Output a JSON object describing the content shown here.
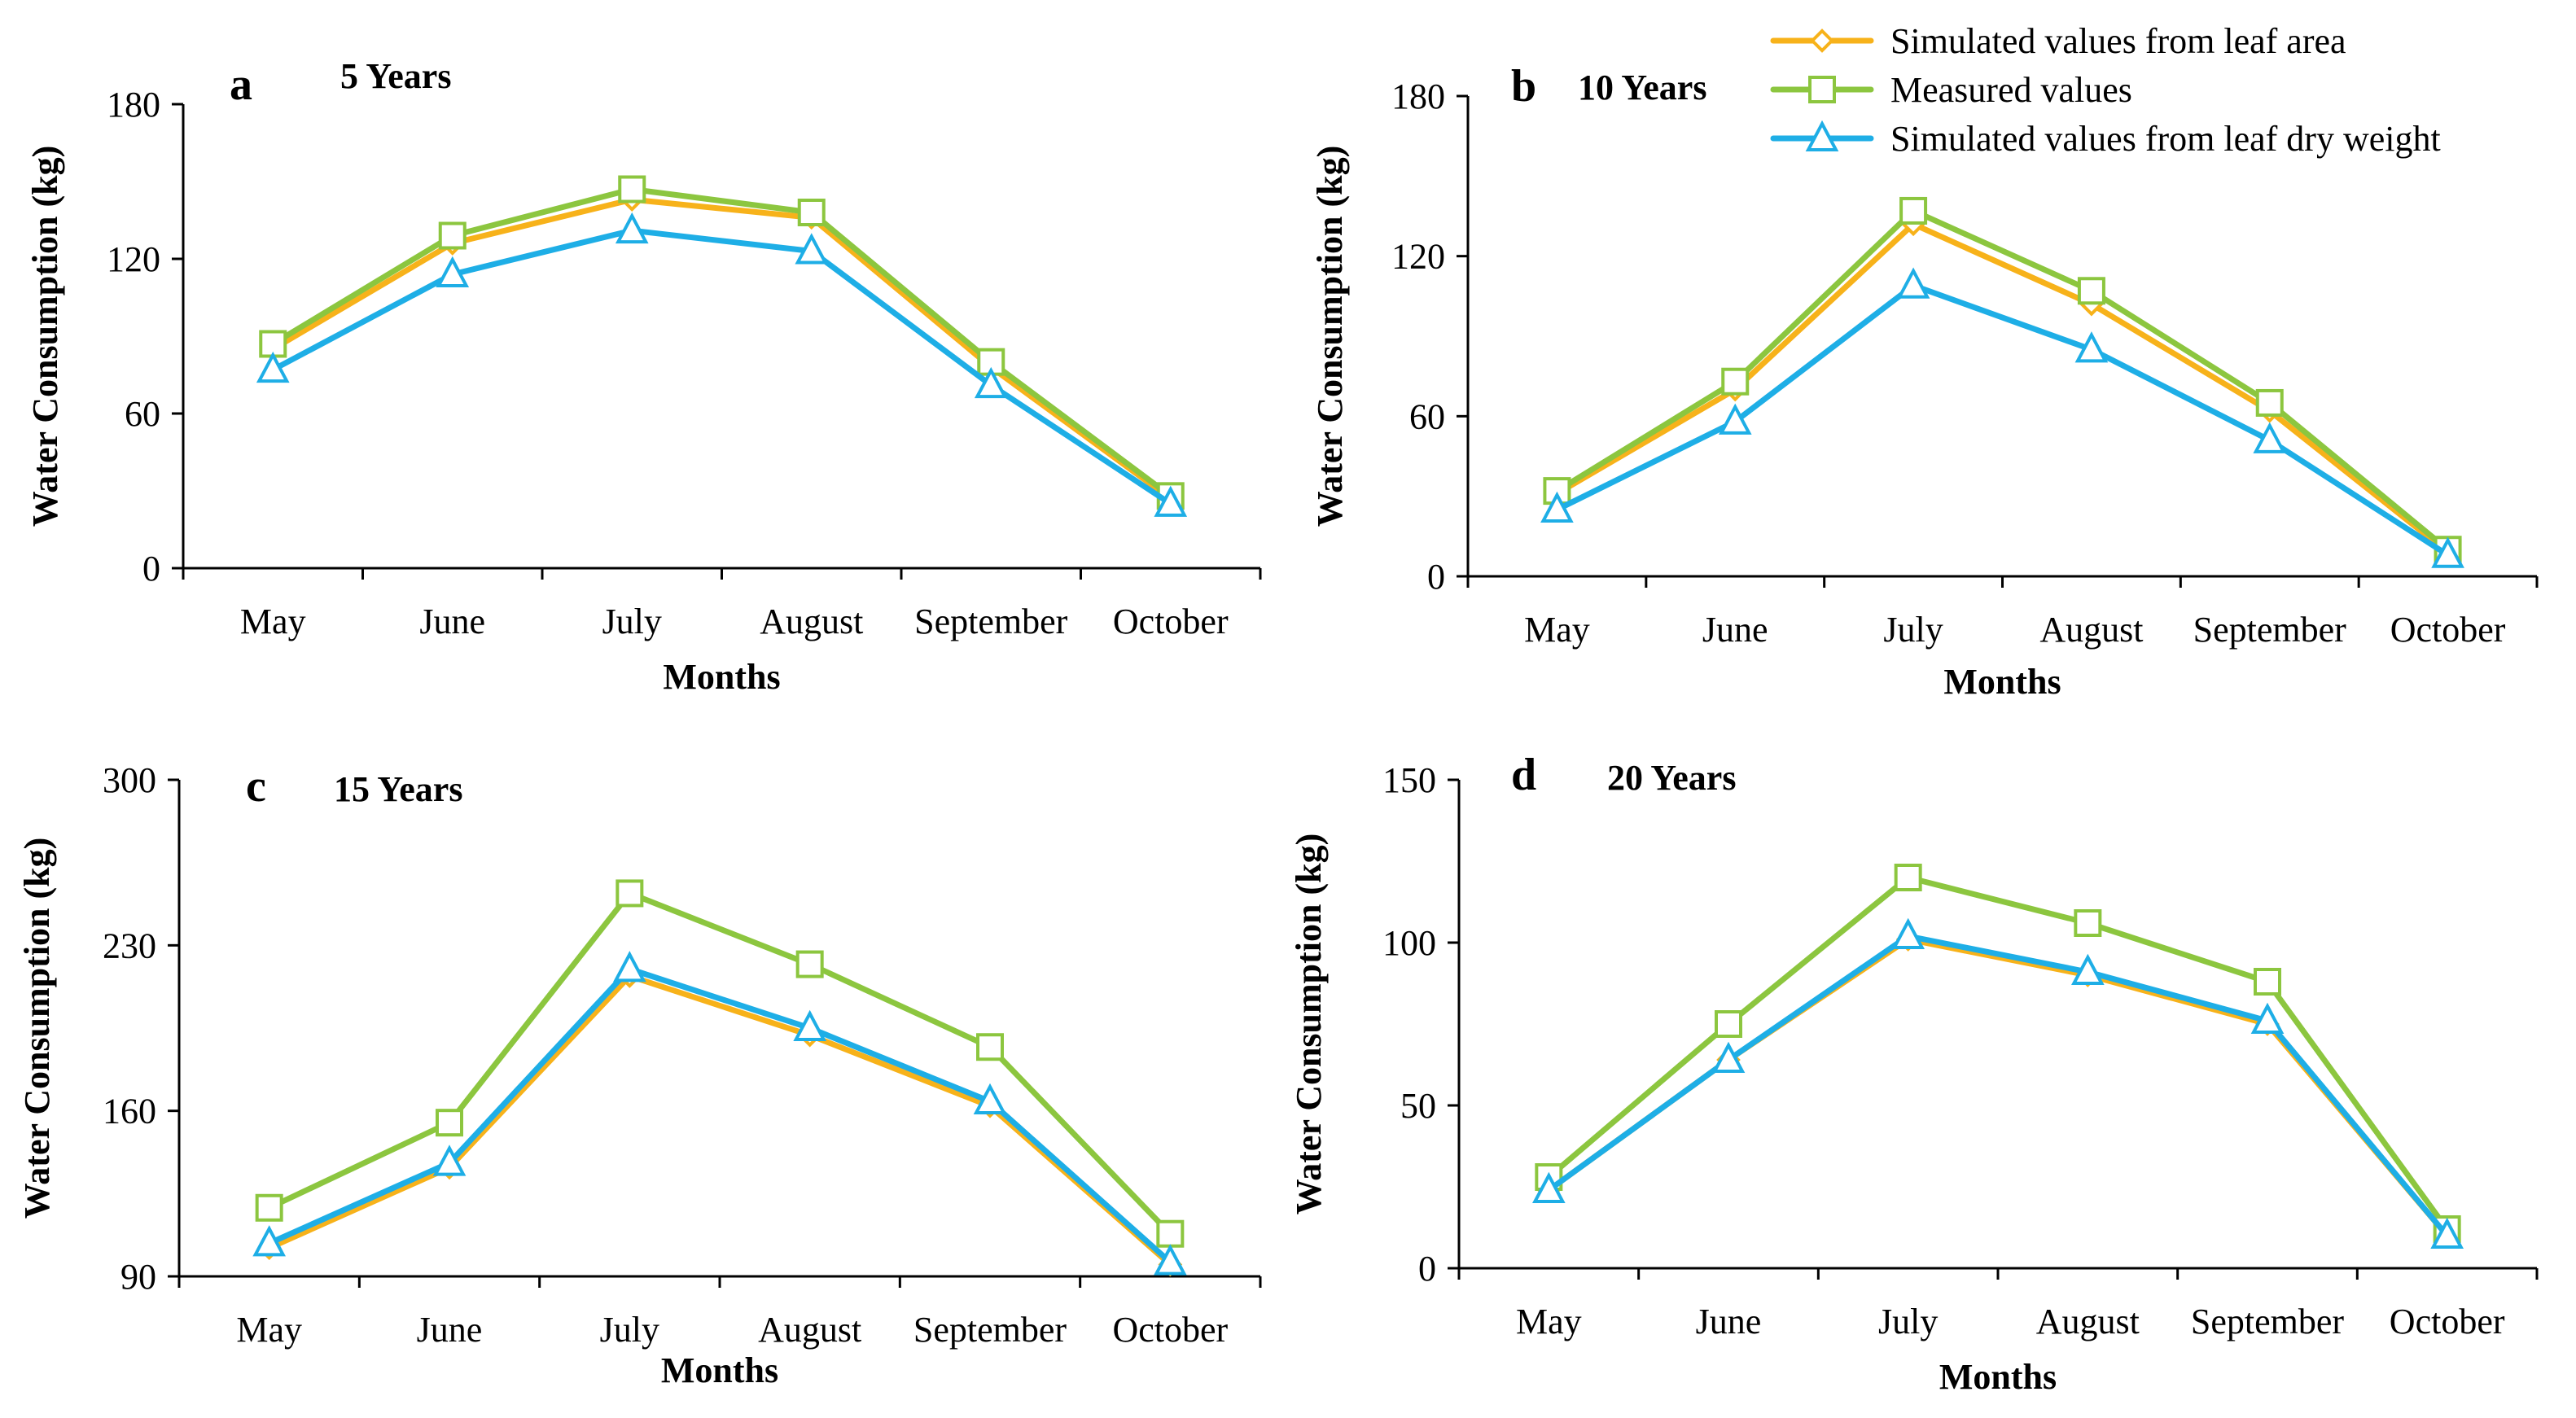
{
  "colors": {
    "leaf_area": "#f7b21a",
    "measured": "#8cc63f",
    "dry_weight": "#1eaee6"
  },
  "legend": [
    {
      "key": "leaf_area",
      "label": "Simulated values from leaf area",
      "marker": "diamond"
    },
    {
      "key": "measured",
      "label": "Measured values",
      "marker": "square"
    },
    {
      "key": "dry_weight",
      "label": "Simulated values from leaf dry weight",
      "marker": "triangle"
    }
  ],
  "chart_data": [
    {
      "type": "line",
      "panel": "a",
      "title": "5 Years",
      "xlabel": "Months",
      "ylabel": "Water Consumption (kg)",
      "categories": [
        "May",
        "June",
        "July",
        "August",
        "September",
        "October"
      ],
      "ylim": [
        0,
        180
      ],
      "yticks": [
        "0",
        "60",
        "120",
        "180"
      ],
      "series": [
        {
          "key": "leaf_area",
          "name": "Simulated values from leaf area",
          "values": [
            85,
            126,
            143,
            136,
            78,
            27
          ]
        },
        {
          "key": "measured",
          "name": "Measured values",
          "values": [
            87,
            129,
            147,
            138,
            80,
            28
          ]
        },
        {
          "key": "dry_weight",
          "name": "Simulated values from leaf dry weight",
          "values": [
            77,
            114,
            131,
            123,
            71,
            25
          ]
        }
      ]
    },
    {
      "type": "line",
      "panel": "b",
      "title": "10 Years",
      "xlabel": "Months",
      "ylabel": "Water Consumption (kg)",
      "categories": [
        "May",
        "June",
        "July",
        "August",
        "September",
        "October"
      ],
      "ylim": [
        0,
        180
      ],
      "yticks": [
        "0",
        "60",
        "120",
        "180"
      ],
      "series": [
        {
          "key": "leaf_area",
          "name": "Simulated values from leaf area",
          "values": [
            31,
            70,
            132,
            102,
            62,
            9
          ]
        },
        {
          "key": "measured",
          "name": "Measured values",
          "values": [
            32,
            73,
            137,
            107,
            65,
            10
          ]
        },
        {
          "key": "dry_weight",
          "name": "Simulated values from leaf dry weight",
          "values": [
            25,
            58,
            109,
            85,
            51,
            8
          ]
        }
      ]
    },
    {
      "type": "line",
      "panel": "c",
      "title": "15 Years",
      "xlabel": "Months",
      "ylabel": "Water Consumption (kg)",
      "categories": [
        "May",
        "June",
        "July",
        "August",
        "September",
        "October"
      ],
      "ylim": [
        90,
        300
      ],
      "yticks": [
        "90",
        "160",
        "230",
        "300"
      ],
      "series": [
        {
          "key": "leaf_area",
          "name": "Simulated values from leaf area",
          "values": [
            102,
            136,
            217,
            192,
            162,
            95
          ]
        },
        {
          "key": "measured",
          "name": "Measured values",
          "values": [
            119,
            155,
            252,
            222,
            187,
            108
          ]
        },
        {
          "key": "dry_weight",
          "name": "Simulated values from leaf dry weight",
          "values": [
            104,
            138,
            220,
            195,
            164,
            96
          ]
        }
      ]
    },
    {
      "type": "line",
      "panel": "d",
      "title": "20 Years",
      "xlabel": "Months",
      "ylabel": "Water Consumption (kg)",
      "categories": [
        "May",
        "June",
        "July",
        "August",
        "September",
        "October"
      ],
      "ylim": [
        0,
        150
      ],
      "yticks": [
        "0",
        "50",
        "100",
        "150"
      ],
      "series": [
        {
          "key": "leaf_area",
          "name": "Simulated values from leaf area",
          "values": [
            24,
            64,
            101,
            90,
            75,
            10
          ]
        },
        {
          "key": "measured",
          "name": "Measured values",
          "values": [
            28,
            75,
            120,
            106,
            88,
            12
          ]
        },
        {
          "key": "dry_weight",
          "name": "Simulated values from leaf dry weight",
          "values": [
            24,
            64,
            102,
            91,
            76,
            10
          ]
        }
      ]
    }
  ]
}
